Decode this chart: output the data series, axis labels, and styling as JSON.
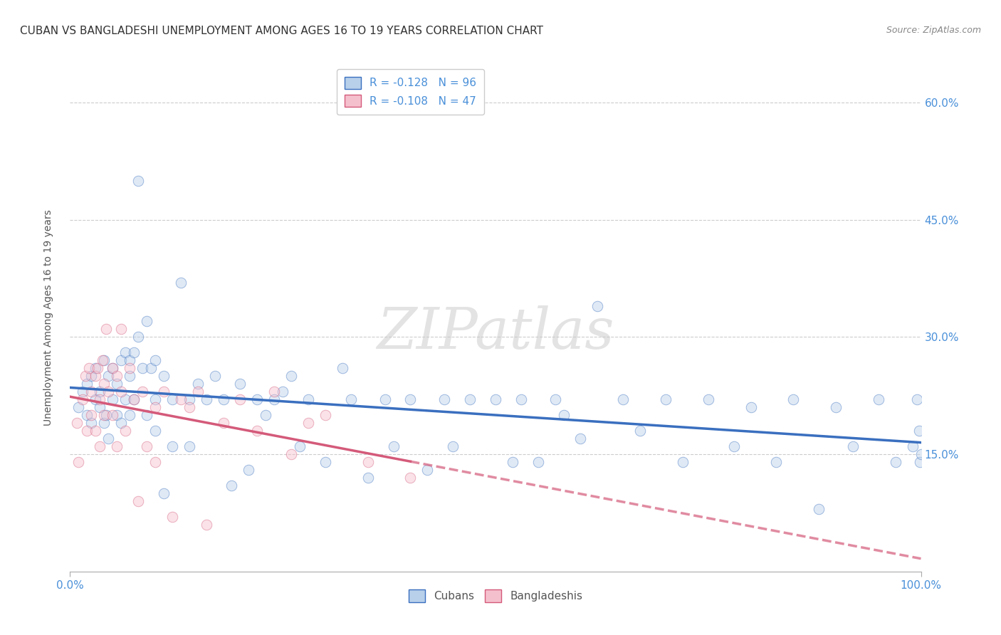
{
  "title": "CUBAN VS BANGLADESHI UNEMPLOYMENT AMONG AGES 16 TO 19 YEARS CORRELATION CHART",
  "source": "Source: ZipAtlas.com",
  "ylabel": "Unemployment Among Ages 16 to 19 years",
  "xlim": [
    0,
    1.0
  ],
  "ylim": [
    0,
    0.65
  ],
  "yticks": [
    0.15,
    0.3,
    0.45,
    0.6
  ],
  "ytick_labels": [
    "15.0%",
    "30.0%",
    "45.0%",
    "60.0%"
  ],
  "xticks": [
    0.0,
    1.0
  ],
  "xtick_labels": [
    "0.0%",
    "100.0%"
  ],
  "background_color": "#ffffff",
  "grid_color": "#cccccc",
  "watermark": "ZIPatlas",
  "legend_entries": [
    {
      "label": "Cubans",
      "R": -0.128,
      "N": 96,
      "color": "#b8d0ea",
      "line_color": "#3a6fbf"
    },
    {
      "label": "Bangladeshis",
      "R": -0.108,
      "N": 47,
      "color": "#f5c0ce",
      "line_color": "#d45a7a"
    }
  ],
  "cubans_x": [
    0.01,
    0.015,
    0.02,
    0.02,
    0.025,
    0.025,
    0.03,
    0.03,
    0.035,
    0.035,
    0.04,
    0.04,
    0.042,
    0.045,
    0.045,
    0.05,
    0.05,
    0.055,
    0.055,
    0.06,
    0.06,
    0.065,
    0.065,
    0.07,
    0.07,
    0.07,
    0.075,
    0.075,
    0.08,
    0.08,
    0.085,
    0.09,
    0.09,
    0.095,
    0.1,
    0.1,
    0.1,
    0.11,
    0.11,
    0.12,
    0.12,
    0.13,
    0.14,
    0.14,
    0.15,
    0.16,
    0.17,
    0.18,
    0.19,
    0.2,
    0.21,
    0.22,
    0.23,
    0.24,
    0.25,
    0.26,
    0.27,
    0.28,
    0.3,
    0.32,
    0.33,
    0.35,
    0.37,
    0.38,
    0.4,
    0.42,
    0.44,
    0.45,
    0.47,
    0.5,
    0.52,
    0.53,
    0.55,
    0.57,
    0.58,
    0.6,
    0.62,
    0.65,
    0.67,
    0.7,
    0.72,
    0.75,
    0.78,
    0.8,
    0.83,
    0.85,
    0.88,
    0.9,
    0.92,
    0.95,
    0.97,
    0.99,
    0.995,
    0.998,
    0.999,
    1.0
  ],
  "cubans_y": [
    0.21,
    0.23,
    0.2,
    0.24,
    0.19,
    0.25,
    0.22,
    0.26,
    0.23,
    0.21,
    0.27,
    0.19,
    0.2,
    0.25,
    0.17,
    0.26,
    0.22,
    0.24,
    0.2,
    0.27,
    0.19,
    0.28,
    0.22,
    0.27,
    0.25,
    0.2,
    0.28,
    0.22,
    0.5,
    0.3,
    0.26,
    0.32,
    0.2,
    0.26,
    0.27,
    0.22,
    0.18,
    0.25,
    0.1,
    0.22,
    0.16,
    0.37,
    0.22,
    0.16,
    0.24,
    0.22,
    0.25,
    0.22,
    0.11,
    0.24,
    0.13,
    0.22,
    0.2,
    0.22,
    0.23,
    0.25,
    0.16,
    0.22,
    0.14,
    0.26,
    0.22,
    0.12,
    0.22,
    0.16,
    0.22,
    0.13,
    0.22,
    0.16,
    0.22,
    0.22,
    0.14,
    0.22,
    0.14,
    0.22,
    0.2,
    0.17,
    0.34,
    0.22,
    0.18,
    0.22,
    0.14,
    0.22,
    0.16,
    0.21,
    0.14,
    0.22,
    0.08,
    0.21,
    0.16,
    0.22,
    0.14,
    0.16,
    0.22,
    0.18,
    0.14,
    0.15
  ],
  "bangladeshis_x": [
    0.008,
    0.01,
    0.015,
    0.018,
    0.02,
    0.022,
    0.025,
    0.025,
    0.03,
    0.03,
    0.032,
    0.035,
    0.035,
    0.038,
    0.04,
    0.04,
    0.042,
    0.045,
    0.05,
    0.05,
    0.055,
    0.055,
    0.06,
    0.06,
    0.065,
    0.07,
    0.075,
    0.08,
    0.085,
    0.09,
    0.1,
    0.1,
    0.11,
    0.12,
    0.13,
    0.14,
    0.15,
    0.16,
    0.18,
    0.2,
    0.22,
    0.24,
    0.26,
    0.28,
    0.3,
    0.35,
    0.4
  ],
  "bangladeshis_y": [
    0.19,
    0.14,
    0.22,
    0.25,
    0.18,
    0.26,
    0.2,
    0.23,
    0.18,
    0.25,
    0.26,
    0.22,
    0.16,
    0.27,
    0.2,
    0.24,
    0.31,
    0.23,
    0.26,
    0.2,
    0.25,
    0.16,
    0.31,
    0.23,
    0.18,
    0.26,
    0.22,
    0.09,
    0.23,
    0.16,
    0.21,
    0.14,
    0.23,
    0.07,
    0.22,
    0.21,
    0.23,
    0.06,
    0.19,
    0.22,
    0.18,
    0.23,
    0.15,
    0.19,
    0.2,
    0.14,
    0.12
  ],
  "title_fontsize": 11,
  "axis_fontsize": 10,
  "tick_fontsize": 11,
  "legend_fontsize": 11,
  "scatter_size": 110,
  "scatter_alpha": 0.45,
  "line_width": 2.5
}
